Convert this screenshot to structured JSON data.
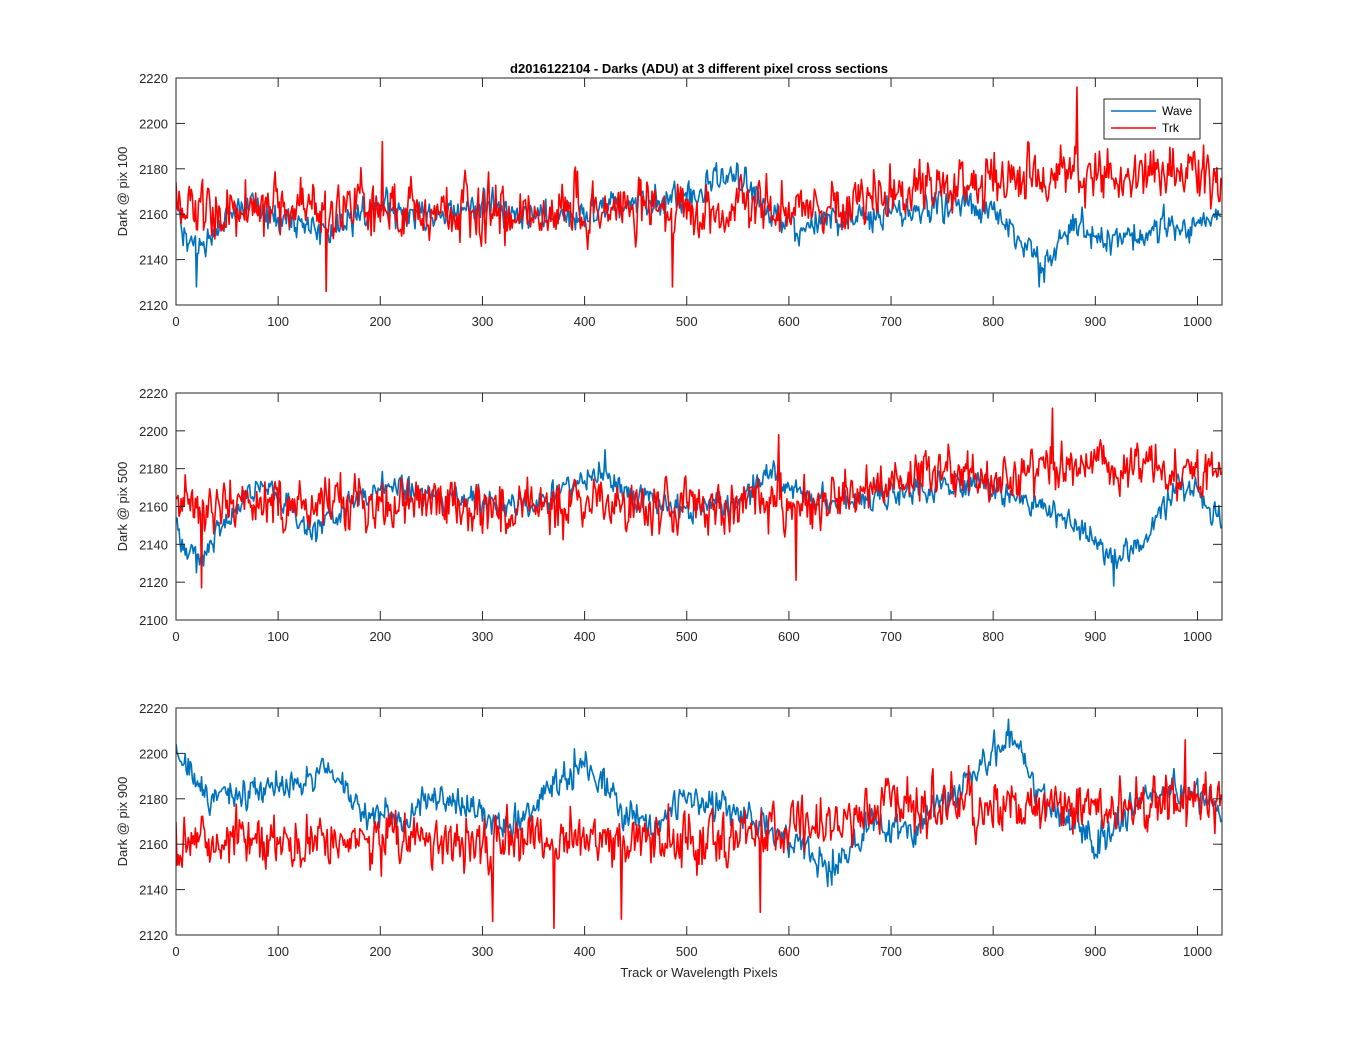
{
  "figure": {
    "title": "d2016122104 - Darks (ADU) at 3 different pixel cross sections",
    "xlabel": "Track or Wavelength Pixels"
  },
  "colors": {
    "Wave": "#0072BD",
    "Trk": "#FF0000",
    "axis": "#262626"
  },
  "chart_data": [
    {
      "type": "line",
      "ylabel": "Dark @ pix 100",
      "xlim": [
        0,
        1024
      ],
      "ylim": [
        2120,
        2220
      ],
      "xticks": [
        0,
        100,
        200,
        300,
        400,
        500,
        600,
        700,
        800,
        900,
        1000
      ],
      "yticks": [
        2120,
        2140,
        2160,
        2180,
        2200,
        2220
      ],
      "legend": {
        "placement": "top-right",
        "entries": [
          "Wave",
          "Trk"
        ]
      },
      "series": [
        {
          "name": "Wave",
          "color": "#0072BD",
          "n_points": 1024,
          "trend_x": [
            0,
            10,
            30,
            60,
            100,
            150,
            200,
            250,
            300,
            350,
            400,
            450,
            500,
            540,
            560,
            600,
            650,
            700,
            750,
            800,
            820,
            850,
            880,
            900,
            950,
            1000,
            1024
          ],
          "trend_y": [
            2165,
            2145,
            2150,
            2162,
            2160,
            2152,
            2163,
            2160,
            2164,
            2158,
            2160,
            2167,
            2165,
            2178,
            2172,
            2152,
            2158,
            2160,
            2166,
            2163,
            2152,
            2138,
            2155,
            2148,
            2152,
            2156,
            2163
          ],
          "noise_amplitude": 5,
          "extremes": [
            [
              20,
              2128
            ],
            [
              845,
              2128
            ]
          ]
        },
        {
          "name": "Trk",
          "color": "#FF0000",
          "n_points": 1024,
          "trend_x": [
            0,
            100,
            200,
            300,
            400,
            500,
            600,
            650,
            700,
            750,
            800,
            850,
            900,
            950,
            1000,
            1024
          ],
          "trend_y": [
            2163,
            2163,
            2162,
            2160,
            2162,
            2161,
            2163,
            2165,
            2168,
            2172,
            2175,
            2177,
            2178,
            2177,
            2176,
            2176
          ],
          "noise_amplitude": 9,
          "extremes": [
            [
              147,
              2126
            ],
            [
              486,
              2128
            ],
            [
              202,
              2192
            ],
            [
              882,
              2216
            ]
          ]
        }
      ]
    },
    {
      "type": "line",
      "ylabel": "Dark @ pix 500",
      "xlim": [
        0,
        1024
      ],
      "ylim": [
        2100,
        2220
      ],
      "xticks": [
        0,
        100,
        200,
        300,
        400,
        500,
        600,
        700,
        800,
        900,
        1000
      ],
      "yticks": [
        2100,
        2120,
        2140,
        2160,
        2180,
        2200,
        2220
      ],
      "legend": null,
      "series": [
        {
          "name": "Wave",
          "color": "#0072BD",
          "n_points": 1024,
          "trend_x": [
            0,
            10,
            25,
            40,
            60,
            80,
            100,
            130,
            200,
            250,
            300,
            350,
            400,
            420,
            450,
            500,
            550,
            580,
            620,
            680,
            750,
            800,
            850,
            880,
            900,
            920,
            950,
            980,
            1000,
            1024
          ],
          "trend_y": [
            2150,
            2140,
            2132,
            2145,
            2160,
            2172,
            2165,
            2148,
            2170,
            2165,
            2162,
            2160,
            2175,
            2178,
            2165,
            2158,
            2162,
            2178,
            2165,
            2165,
            2172,
            2170,
            2160,
            2150,
            2142,
            2130,
            2142,
            2172,
            2165,
            2155
          ],
          "noise_amplitude": 5,
          "extremes": [
            [
              20,
              2125
            ],
            [
              918,
              2118
            ],
            [
              420,
              2190
            ]
          ]
        },
        {
          "name": "Trk",
          "color": "#FF0000",
          "n_points": 1024,
          "trend_x": [
            0,
            100,
            200,
            300,
            400,
            500,
            600,
            650,
            700,
            750,
            800,
            850,
            900,
            950,
            1000,
            1024
          ],
          "trend_y": [
            2160,
            2162,
            2160,
            2158,
            2160,
            2158,
            2162,
            2165,
            2172,
            2178,
            2176,
            2180,
            2182,
            2180,
            2178,
            2178
          ],
          "noise_amplitude": 10,
          "extremes": [
            [
              25,
              2117
            ],
            [
              607,
              2121
            ],
            [
              590,
              2198
            ],
            [
              858,
              2212
            ]
          ]
        }
      ]
    },
    {
      "type": "line",
      "ylabel": "Dark @ pix 900",
      "xlim": [
        0,
        1024
      ],
      "ylim": [
        2120,
        2220
      ],
      "xticks": [
        0,
        100,
        200,
        300,
        400,
        500,
        600,
        700,
        800,
        900,
        1000
      ],
      "yticks": [
        2120,
        2140,
        2160,
        2180,
        2200,
        2220
      ],
      "legend": null,
      "series": [
        {
          "name": "Wave",
          "color": "#0072BD",
          "n_points": 1024,
          "trend_x": [
            0,
            10,
            30,
            60,
            100,
            150,
            180,
            230,
            250,
            300,
            330,
            360,
            400,
            440,
            470,
            500,
            520,
            560,
            600,
            640,
            680,
            720,
            760,
            800,
            820,
            850,
            880,
            900,
            950,
            1000,
            1024
          ],
          "trend_y": [
            2198,
            2195,
            2180,
            2183,
            2185,
            2192,
            2175,
            2170,
            2182,
            2175,
            2168,
            2182,
            2195,
            2175,
            2168,
            2182,
            2180,
            2172,
            2165,
            2150,
            2168,
            2165,
            2180,
            2200,
            2205,
            2180,
            2168,
            2160,
            2183,
            2182,
            2172
          ],
          "noise_amplitude": 5,
          "extremes": [
            [
              390,
              2202
            ],
            [
              815,
              2215
            ],
            [
              642,
              2142
            ]
          ]
        },
        {
          "name": "Trk",
          "color": "#FF0000",
          "n_points": 1024,
          "trend_x": [
            0,
            100,
            200,
            300,
            400,
            500,
            550,
            600,
            650,
            700,
            750,
            800,
            850,
            900,
            950,
            1000,
            1024
          ],
          "trend_y": [
            2162,
            2162,
            2162,
            2160,
            2163,
            2162,
            2165,
            2168,
            2170,
            2175,
            2178,
            2178,
            2178,
            2176,
            2177,
            2178,
            2178
          ],
          "noise_amplitude": 9,
          "extremes": [
            [
              310,
              2126
            ],
            [
              370,
              2123
            ],
            [
              436,
              2127
            ],
            [
              572,
              2130
            ],
            [
              988,
              2206
            ]
          ]
        }
      ]
    }
  ]
}
